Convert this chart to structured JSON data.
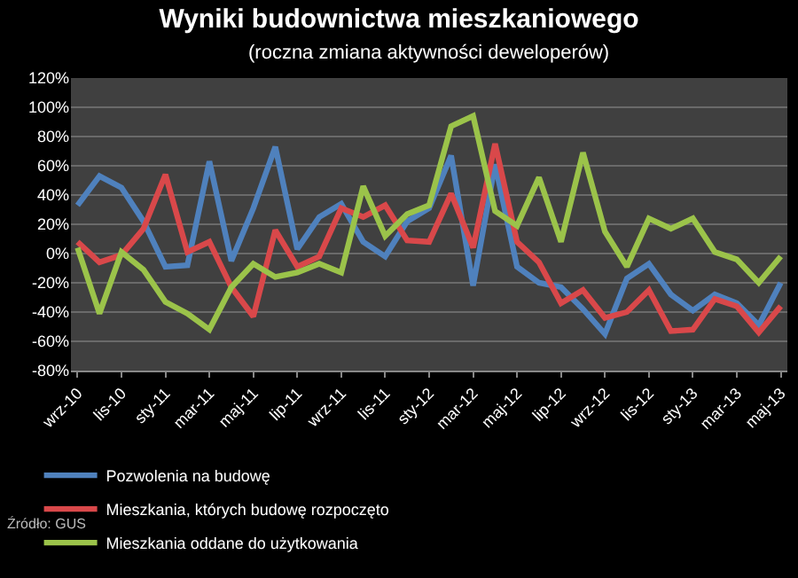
{
  "chart_data": {
    "type": "line",
    "title": "Wyniki budownictwa mieszkaniowego",
    "subtitle": "(roczna zmiana aktywności deweloperów)",
    "categories": [
      "wrz-10",
      null,
      "lis-10",
      null,
      "sty-11",
      null,
      "mar-11",
      null,
      "maj-11",
      null,
      "lip-11",
      null,
      "wrz-11",
      null,
      "lis-11",
      null,
      "sty-12",
      null,
      "mar-12",
      null,
      "maj-12",
      null,
      "lip-12",
      null,
      "wrz-12",
      null,
      "lis-12",
      null,
      "sty-13",
      null,
      "mar-13",
      null,
      "maj-13"
    ],
    "series": [
      {
        "name": "Pozwolenia na budowę",
        "color": "#4f81bd",
        "values": [
          33,
          53,
          45,
          22,
          -9,
          -8,
          63,
          -5,
          31,
          73,
          3,
          25,
          34,
          8,
          -2,
          22,
          31,
          67,
          -22,
          61,
          -9,
          -20,
          -23,
          -38,
          -55,
          -17,
          -7,
          -28,
          -39,
          -28,
          -34,
          -49,
          -20
        ]
      },
      {
        "name": "Mieszkania, których budowę rozpoczęto",
        "color": "#d9484a",
        "values": [
          8,
          -6,
          -1,
          17,
          54,
          1,
          8,
          -23,
          -43,
          16,
          -9,
          -2,
          31,
          25,
          33,
          9,
          8,
          41,
          4,
          75,
          8,
          -6,
          -34,
          -25,
          -44,
          -40,
          -25,
          -53,
          -52,
          -31,
          -36,
          -54,
          -36
        ]
      },
      {
        "name": "Mieszkania oddane do użytkowania",
        "color": "#9bc34a",
        "values": [
          4,
          -41,
          1,
          -11,
          -33,
          -41,
          -52,
          -23,
          -7,
          -16,
          -13,
          -7,
          -13,
          46,
          12,
          27,
          33,
          87,
          94,
          29,
          19,
          52,
          8,
          69,
          15,
          -9,
          24,
          17,
          24,
          1,
          -4,
          -20,
          -2
        ]
      }
    ],
    "ylim": [
      -80,
      120
    ],
    "yticks": [
      {
        "value": -80,
        "label": "-80%"
      },
      {
        "value": -60,
        "label": "-60%"
      },
      {
        "value": -40,
        "label": "-40%"
      },
      {
        "value": -20,
        "label": "-20%"
      },
      {
        "value": 0,
        "label": "0%"
      },
      {
        "value": 20,
        "label": "20%"
      },
      {
        "value": 40,
        "label": "40%"
      },
      {
        "value": 60,
        "label": "60%"
      },
      {
        "value": 80,
        "label": "80%"
      },
      {
        "value": 100,
        "label": "100%"
      },
      {
        "value": 120,
        "label": "120%"
      }
    ],
    "grid": "y",
    "legend": "bottom",
    "marker": "none",
    "line_style": "solid",
    "annotations": [
      "Źródło: GUS"
    ]
  }
}
